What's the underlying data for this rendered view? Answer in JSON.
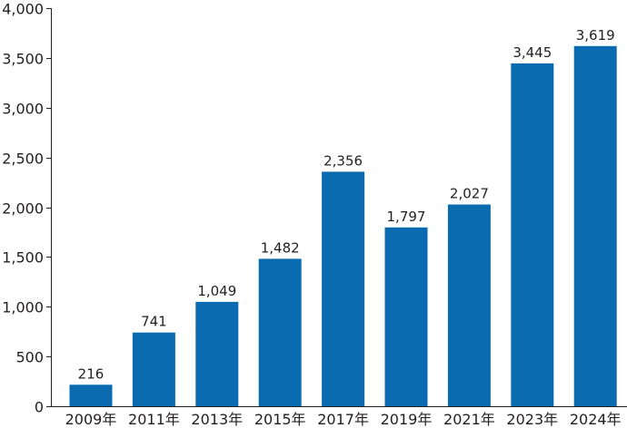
{
  "chart_data": {
    "type": "bar",
    "categories": [
      "2009年",
      "2011年",
      "2013年",
      "2015年",
      "2017年",
      "2019年",
      "2021年",
      "2023年",
      "2024年"
    ],
    "values": [
      216,
      741,
      1049,
      1482,
      2356,
      1797,
      2027,
      3445,
      3619
    ],
    "value_labels": [
      "216",
      "741",
      "1,049",
      "1,482",
      "2,356",
      "1,797",
      "2,027",
      "3,445",
      "3,619"
    ],
    "ylim": [
      0,
      4000
    ],
    "yticks": [
      0,
      500,
      1000,
      1500,
      2000,
      2500,
      3000,
      3500,
      4000
    ],
    "ytick_labels": [
      "0",
      "500",
      "1,000",
      "1,500",
      "2,000",
      "2,500",
      "3,000",
      "3,500",
      "4,000"
    ],
    "bar_color": "#0a6bb0",
    "grid": false,
    "title": "",
    "xlabel": "",
    "ylabel": ""
  }
}
